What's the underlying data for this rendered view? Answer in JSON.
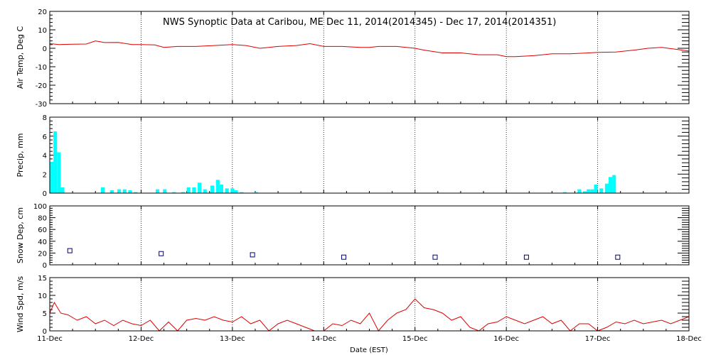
{
  "chart_data": [
    {
      "type": "line",
      "id": "temp",
      "title": "NWS Synoptic Data at Caribou, ME    Dec 11, 2014(2014345) - Dec 17, 2014(2014351)",
      "ylabel": "Air Temp, Deg C",
      "ylim": [
        -30,
        20
      ],
      "yticks": [
        20,
        10,
        0,
        -10,
        -20,
        -30
      ],
      "xlim": [
        0,
        7
      ],
      "color": "#dd0000",
      "x": [
        0,
        0.1,
        0.25,
        0.4,
        0.5,
        0.6,
        0.75,
        0.9,
        1.0,
        1.15,
        1.25,
        1.4,
        1.6,
        1.8,
        2.0,
        2.15,
        2.3,
        2.5,
        2.7,
        2.85,
        3.0,
        3.2,
        3.4,
        3.5,
        3.6,
        3.8,
        4.0,
        4.1,
        4.3,
        4.5,
        4.7,
        4.9,
        5.0,
        5.1,
        5.3,
        5.5,
        5.7,
        5.9,
        6.0,
        6.2,
        6.4,
        6.55,
        6.7,
        6.85,
        7.0
      ],
      "values": [
        2.5,
        2,
        2.2,
        2.3,
        4,
        3.1,
        3.2,
        2,
        2,
        1.8,
        0.5,
        1,
        1,
        1.5,
        2,
        1.5,
        0,
        1,
        1.5,
        2.5,
        1,
        1,
        0.5,
        0.5,
        1,
        1,
        0,
        -1,
        -2.5,
        -2.5,
        -3.5,
        -3.5,
        -4.5,
        -4.5,
        -4,
        -3,
        -3,
        -2.5,
        -2.2,
        -2,
        -1,
        0,
        0.5,
        -0.5,
        -1.5
      ]
    },
    {
      "type": "bar",
      "id": "precip",
      "ylabel": "Precip, mm",
      "ylim": [
        0,
        8
      ],
      "yticks": [
        8,
        6,
        4,
        2,
        0
      ],
      "xlim": [
        0,
        7
      ],
      "color": "#00ffff",
      "x": [
        0.0,
        0.04,
        0.08,
        0.12,
        0.56,
        0.66,
        0.74,
        0.8,
        0.86,
        0.92,
        1.16,
        1.24,
        1.34,
        1.44,
        1.5,
        1.56,
        1.62,
        1.68,
        1.76,
        1.82,
        1.86,
        1.92,
        1.98,
        2.02,
        2.08,
        2.24,
        5.62,
        5.78,
        5.84,
        5.88,
        5.92,
        5.96,
        6.02,
        6.08,
        6.12,
        6.16
      ],
      "values": [
        3.3,
        6.5,
        4.3,
        0.6,
        0.6,
        0.3,
        0.4,
        0.4,
        0.3,
        0.1,
        0.4,
        0.4,
        0.1,
        0.1,
        0.6,
        0.6,
        1.1,
        0.4,
        0.8,
        1.4,
        0.9,
        0.5,
        0.5,
        0.3,
        0.1,
        0.1,
        0.1,
        0.4,
        0.2,
        0.4,
        0.4,
        0.9,
        0.5,
        1.0,
        1.7,
        1.9
      ]
    },
    {
      "type": "scatter",
      "id": "snow",
      "ylabel": "Snow Dep, cm",
      "ylim": [
        0,
        100
      ],
      "yticks": [
        100,
        80,
        60,
        40,
        20,
        0
      ],
      "xlim": [
        0,
        7
      ],
      "color": "#000080",
      "x": [
        0.22,
        1.22,
        2.22,
        3.22,
        4.22,
        5.22,
        6.22
      ],
      "values": [
        24,
        19,
        17,
        13,
        13,
        13,
        13
      ]
    },
    {
      "type": "line",
      "id": "wind",
      "ylabel": "Wind Spd, m/s",
      "ylim": [
        0,
        15
      ],
      "yticks": [
        15,
        10,
        5,
        0
      ],
      "xlim": [
        0,
        7
      ],
      "color": "#dd0000",
      "xlabel": "Date (EST)",
      "categories": [
        "11-Dec",
        "12-Dec",
        "13-Dec",
        "14-Dec",
        "15-Dec",
        "16-Dec",
        "17-Dec",
        "18-Dec"
      ],
      "x": [
        0,
        0.05,
        0.12,
        0.2,
        0.3,
        0.4,
        0.5,
        0.6,
        0.7,
        0.8,
        0.9,
        1.0,
        1.1,
        1.2,
        1.3,
        1.4,
        1.5,
        1.6,
        1.7,
        1.8,
        1.9,
        2.0,
        2.1,
        2.2,
        2.3,
        2.4,
        2.5,
        2.6,
        2.7,
        2.8,
        2.9,
        3.0,
        3.1,
        3.2,
        3.3,
        3.4,
        3.5,
        3.6,
        3.7,
        3.8,
        3.9,
        4.0,
        4.1,
        4.2,
        4.3,
        4.4,
        4.5,
        4.6,
        4.7,
        4.8,
        4.9,
        5.0,
        5.1,
        5.2,
        5.3,
        5.4,
        5.5,
        5.6,
        5.7,
        5.8,
        5.9,
        6.0,
        6.1,
        6.2,
        6.3,
        6.4,
        6.5,
        6.6,
        6.7,
        6.8,
        6.9,
        7.0
      ],
      "values": [
        5,
        8,
        5,
        4.5,
        3,
        4,
        2,
        3,
        1.5,
        3,
        2,
        1.5,
        3,
        0,
        2.5,
        0,
        3,
        3.5,
        3,
        4,
        3,
        2.5,
        4,
        2,
        3,
        0,
        2,
        3,
        2,
        1,
        0,
        0,
        2,
        1.5,
        3,
        2,
        5,
        0,
        3,
        5,
        6,
        9,
        6.5,
        6,
        5,
        3,
        4,
        1,
        0,
        2,
        2.5,
        4,
        3,
        2,
        3,
        4,
        2,
        3,
        0,
        2,
        2,
        0,
        1,
        2.5,
        2,
        3,
        2,
        2.5,
        3,
        2,
        3,
        4
      ]
    }
  ]
}
